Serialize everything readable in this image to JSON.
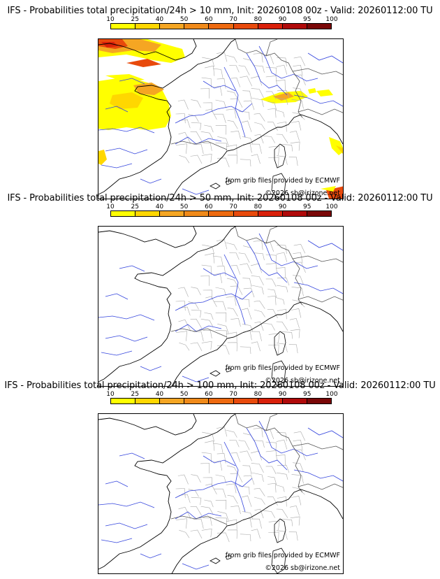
{
  "colorbar": {
    "ticks": [
      "10",
      "25",
      "40",
      "50",
      "60",
      "70",
      "80",
      "90",
      "95",
      "100"
    ],
    "colors": [
      "#ffff00",
      "#ffd700",
      "#f5a623",
      "#f08a1a",
      "#ee6a10",
      "#e84a0c",
      "#d9200a",
      "#b00a0a",
      "#7a0808"
    ]
  },
  "panels": [
    {
      "title": "IFS - Probabilities total precipitation/24h > 10 mm, Init: 20260108 00z - Valid: 20260112:00 TU",
      "source": "from grib files provided by ECMWF",
      "copyright": "©2026 sb@irizone.net",
      "has_precip": true
    },
    {
      "title": "IFS - Probabilities total precipitation/24h > 50 mm, Init: 20260108 00z - Valid: 20260112:00 TU",
      "source": "from grib files provided by ECMWF",
      "copyright": "©2026 sb@irizone.net",
      "has_precip": false
    },
    {
      "title": "IFS - Probabilities total precipitation/24h > 100 mm, Init: 20260108 00z - Valid: 20260112:00 TU",
      "source": "from grib files provided by ECMWF",
      "copyright": "©2026 sb@irizone.net",
      "has_precip": false
    }
  ]
}
